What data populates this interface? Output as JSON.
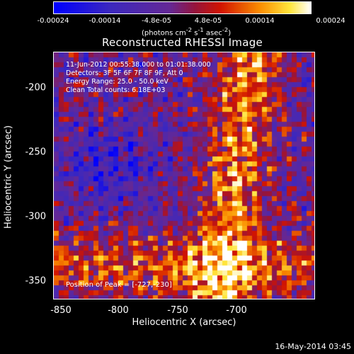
{
  "colorbar": {
    "ticks": [
      "-0.00024",
      "-0.00014",
      "-4.8e-05",
      "4.8e-05",
      "0.00014",
      "0.00024"
    ],
    "unit_label": "(photons cm",
    "unit_exp1": "-2",
    "unit_mid": " s",
    "unit_exp2": "-1",
    "unit_mid2": " asec",
    "unit_exp3": "-2",
    "unit_close": ")"
  },
  "chart_data": {
    "type": "heatmap",
    "title": "Reconstructed RHESSI Image",
    "xlabel": "Heliocentric X (arcsec)",
    "ylabel": "Heliocentric Y (arcsec)",
    "x_ticks": [
      "-850",
      "-800",
      "-750",
      "-700"
    ],
    "y_ticks": [
      "-200",
      "-250",
      "-300",
      "-350"
    ],
    "xlim": [
      -850,
      -737
    ],
    "ylim": [
      -366,
      -183
    ],
    "color_range": [
      -0.00024,
      0.00024
    ],
    "colormap": "blue-purple-red-yellow-white"
  },
  "annotations": {
    "time": "11-Jun-2012 00:55:38.000 to 01:01:38.000",
    "detectors": "Detectors: 3F 5F 6F 7F 8F 9F, Att 0",
    "energy": "Energy Range: 25.0 - 50.0 keV",
    "clean": "Clean     Total counts: 6.18E+03",
    "peak": "Position of Peak = [-727,-230]"
  },
  "footer": {
    "date": "16-May-2014 03:45"
  }
}
